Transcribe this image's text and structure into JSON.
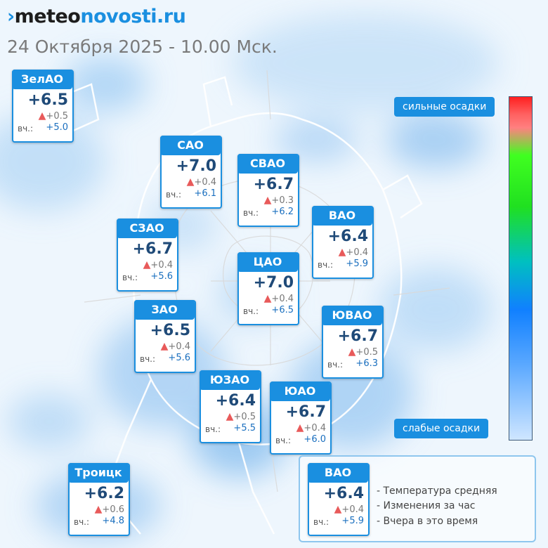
{
  "header": {
    "logo_mark": "›",
    "logo_meteo": "meteo",
    "logo_novosti": "novosti",
    "logo_ru": ".ru",
    "date": "24 Октября 2025 - 10.00 Мск."
  },
  "districts": [
    {
      "name": "ЗелАО",
      "temp": "+6.5",
      "change": "+0.5",
      "yesterday_label": "вч.:",
      "yesterday": "+5.0"
    },
    {
      "name": "САО",
      "temp": "+7.0",
      "change": "+0.4",
      "yesterday_label": "вч.:",
      "yesterday": "+6.1"
    },
    {
      "name": "СВАО",
      "temp": "+6.7",
      "change": "+0.3",
      "yesterday_label": "вч.:",
      "yesterday": "+6.2"
    },
    {
      "name": "ВАО",
      "temp": "+6.4",
      "change": "+0.4",
      "yesterday_label": "вч.:",
      "yesterday": "+5.9"
    },
    {
      "name": "СЗАО",
      "temp": "+6.7",
      "change": "+0.4",
      "yesterday_label": "вч.:",
      "yesterday": "+5.6"
    },
    {
      "name": "ЦАО",
      "temp": "+7.0",
      "change": "+0.4",
      "yesterday_label": "вч.:",
      "yesterday": "+6.5"
    },
    {
      "name": "ЗАО",
      "temp": "+6.5",
      "change": "+0.4",
      "yesterday_label": "вч.:",
      "yesterday": "+5.6"
    },
    {
      "name": "ЮВАО",
      "temp": "+6.7",
      "change": "+0.5",
      "yesterday_label": "вч.:",
      "yesterday": "+6.3"
    },
    {
      "name": "ЮЗАО",
      "temp": "+6.4",
      "change": "+0.5",
      "yesterday_label": "вч.:",
      "yesterday": "+5.5"
    },
    {
      "name": "ЮАО",
      "temp": "+6.7",
      "change": "+0.4",
      "yesterday_label": "вч.:",
      "yesterday": "+6.0"
    },
    {
      "name": "Троицк",
      "temp": "+6.2",
      "change": "+0.6",
      "yesterday_label": "вч.:",
      "yesterday": "+4.8"
    }
  ],
  "precip_scale": {
    "top_label": "сильные осадки",
    "bottom_label": "слабые осадки",
    "colors": [
      "#ff2020",
      "#40ff20",
      "#00c0c0",
      "#1080ff",
      "#cfe6ff"
    ]
  },
  "legend": {
    "sample": {
      "name": "ВАО",
      "temp": "+6.4",
      "change": "+0.4",
      "yesterday_label": "вч.:",
      "yesterday": "+5.9"
    },
    "line1": "- Температура средняя",
    "line2": "- Изменения за час",
    "line3": "- Вчера в это время"
  },
  "colors": {
    "accent": "#1a8fe0",
    "temp_text": "#1f4a78",
    "up_arrow": "#e85a5a"
  }
}
